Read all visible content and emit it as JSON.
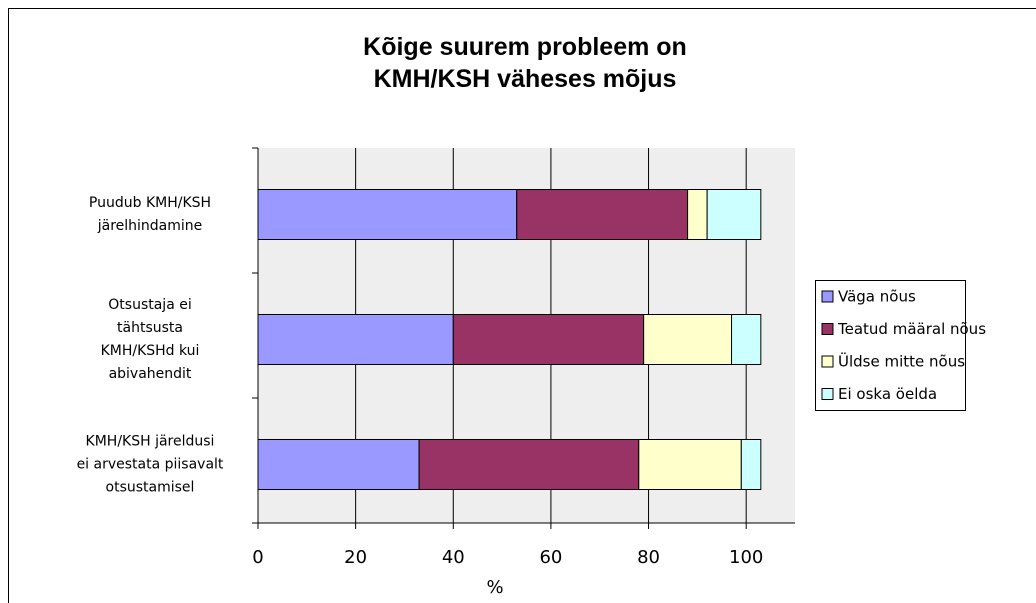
{
  "chart_data": {
    "type": "stacked-barh",
    "title": "Kõige suurem probleem on\nKMH/KSH väheses mõjus",
    "categories": [
      "Puudub KMH/KSH\njärelhindamine",
      "Otsustaja ei\ntähtsusta\nKMH/KSHd kui\nabivahendit",
      "KMH/KSH järeldusi\nei arvestata piisavalt\notsustamisel"
    ],
    "series": [
      {
        "name": "Väga nõus",
        "color": "#9999ff",
        "values": [
          53,
          40,
          33
        ]
      },
      {
        "name": "Teatud määral nõus",
        "color": "#993366",
        "values": [
          35,
          39,
          45
        ]
      },
      {
        "name": "Üldse mitte nõus",
        "color": "#ffffcc",
        "values": [
          4,
          18,
          21
        ]
      },
      {
        "name": "Ei oska öelda",
        "color": "#ccffff",
        "values": [
          11,
          6,
          4
        ]
      }
    ],
    "xlabel": "%",
    "xlim": [
      0,
      110
    ],
    "xticks": [
      0,
      20,
      40,
      60,
      80,
      100
    ],
    "grid": true,
    "legend": "right"
  }
}
